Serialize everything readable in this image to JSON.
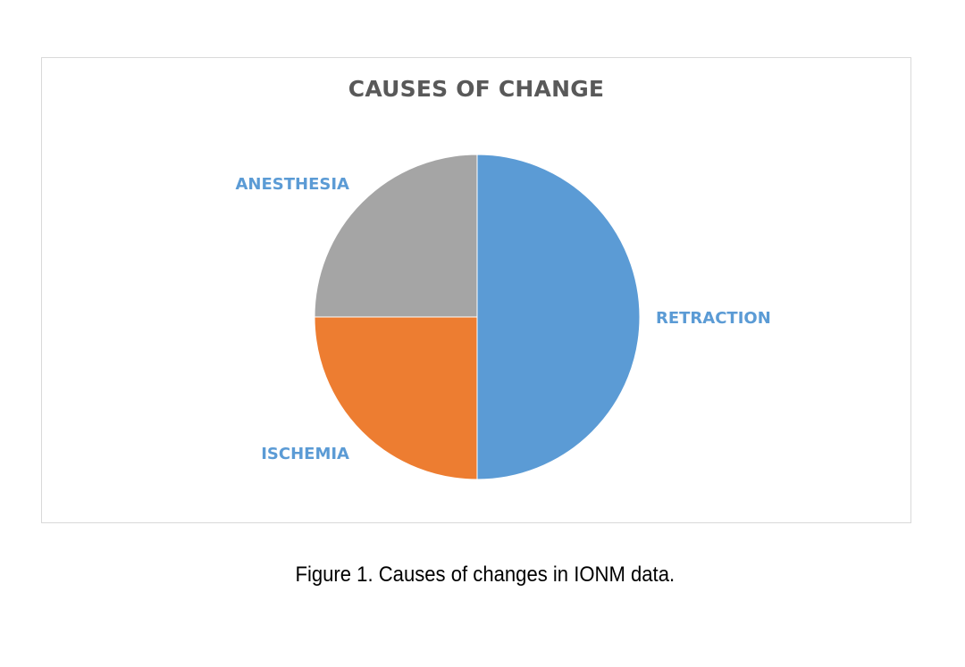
{
  "chart_data": {
    "type": "pie",
    "title": "CAUSES OF CHANGE",
    "categories": [
      "RETRACTION",
      "ISCHEMIA",
      "ANESTHESIA"
    ],
    "values": [
      50,
      25,
      25
    ],
    "colors": [
      "#5b9bd5",
      "#ed7d31",
      "#a5a5a5"
    ],
    "label_color": "#5b9bd5",
    "start_angle": "12 o'clock",
    "direction": "clockwise",
    "legend": "none"
  },
  "caption": "Figure 1. Causes of changes in IONM data."
}
